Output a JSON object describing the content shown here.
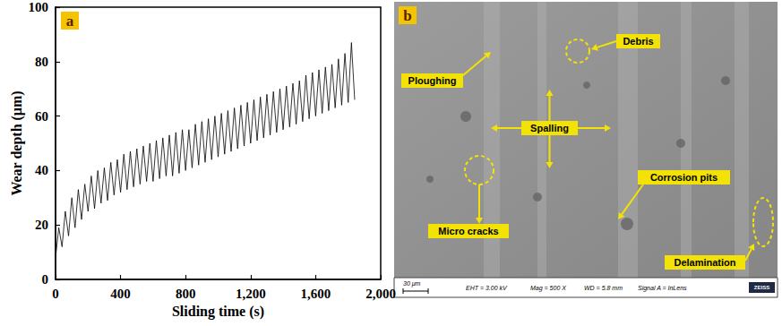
{
  "chart_data": {
    "type": "line",
    "panel": "a",
    "xlabel": "Sliding time (s)",
    "ylabel": "Wear depth (μm)",
    "color": "#000000",
    "x": [
      0,
      20,
      40,
      60,
      80,
      100,
      120,
      140,
      160,
      180,
      200,
      220,
      240,
      260,
      280,
      300,
      320,
      340,
      360,
      380,
      400,
      420,
      440,
      460,
      480,
      500,
      520,
      540,
      560,
      580,
      600,
      620,
      640,
      660,
      680,
      700,
      720,
      740,
      760,
      780,
      800,
      820,
      840,
      860,
      880,
      900,
      920,
      940,
      960,
      980,
      1000,
      1020,
      1040,
      1060,
      1080,
      1100,
      1120,
      1140,
      1160,
      1180,
      1200,
      1220,
      1240,
      1260,
      1280,
      1300,
      1320,
      1340,
      1360,
      1380,
      1400,
      1420,
      1440,
      1460,
      1480,
      1500,
      1520,
      1540,
      1560,
      1580,
      1600,
      1620,
      1640,
      1660,
      1680,
      1700,
      1720,
      1740,
      1760,
      1780,
      1800,
      1820,
      1840
    ],
    "values": [
      8,
      19,
      12,
      25,
      16,
      30,
      19,
      33,
      22,
      35,
      25,
      38,
      26,
      40,
      28,
      41,
      29,
      43,
      31,
      44,
      32,
      46,
      33,
      47,
      34,
      48,
      35,
      49,
      36,
      50,
      36,
      51,
      37,
      52,
      38,
      53,
      38,
      54,
      39,
      55,
      40,
      55,
      41,
      57,
      42,
      58,
      43,
      59,
      44,
      60,
      45,
      61,
      46,
      62,
      47,
      63,
      48,
      64,
      49,
      65,
      50,
      66,
      51,
      67,
      52,
      68,
      53,
      69,
      54,
      70,
      55,
      71,
      56,
      72,
      57,
      73,
      58,
      75,
      59,
      76,
      60,
      77,
      61,
      78,
      62,
      79,
      63,
      81,
      64,
      83,
      65,
      87,
      66
    ],
    "xlim": [
      0,
      2000
    ],
    "xticks": [
      0,
      400,
      800,
      1200,
      1600,
      2000
    ],
    "ylim": [
      0,
      100
    ],
    "yticks": [
      0,
      20,
      40,
      60,
      80,
      100
    ],
    "grid": false
  },
  "micrograph": {
    "panel": "b",
    "annotations": [
      "Ploughing",
      "Debris",
      "Spalling",
      "Corrosion pits",
      "Micro cracks",
      "Delamination"
    ],
    "scale_bar": "30 μm",
    "info": [
      "EHT = 3.00 kV",
      "Mag = 500 X",
      "WD = 5.8 mm",
      "Signal A = InLens"
    ],
    "logo": "ZEISS"
  }
}
